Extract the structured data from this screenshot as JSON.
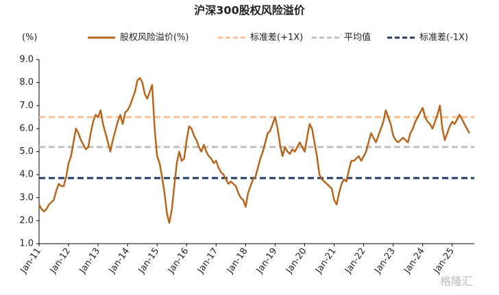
{
  "chart_data": {
    "type": "line",
    "title": "沪深300股权风险溢价",
    "y_label": "(%)",
    "watermark": "格隆汇",
    "categories": [
      "Jan-11",
      null,
      null,
      null,
      null,
      null,
      null,
      null,
      null,
      null,
      null,
      null,
      "Jan-12",
      null,
      null,
      null,
      null,
      null,
      null,
      null,
      null,
      null,
      null,
      null,
      "Jan-13",
      null,
      null,
      null,
      null,
      null,
      null,
      null,
      null,
      null,
      null,
      null,
      "Jan-14",
      null,
      null,
      null,
      null,
      null,
      null,
      null,
      null,
      null,
      null,
      null,
      "Jan-15",
      null,
      null,
      null,
      null,
      null,
      null,
      null,
      null,
      null,
      null,
      null,
      "Jan-16",
      null,
      null,
      null,
      null,
      null,
      null,
      null,
      null,
      null,
      null,
      null,
      "Jan-17",
      null,
      null,
      null,
      null,
      null,
      null,
      null,
      null,
      null,
      null,
      null,
      "Jan-18",
      null,
      null,
      null,
      null,
      null,
      null,
      null,
      null,
      null,
      null,
      null,
      "Jan-19",
      null,
      null,
      null,
      null,
      null,
      null,
      null,
      null,
      null,
      null,
      null,
      "Jan-20",
      null,
      null,
      null,
      null,
      null,
      null,
      null,
      null,
      null,
      null,
      null,
      "Jan-21",
      null,
      null,
      null,
      null,
      null,
      null,
      null,
      null,
      null,
      null,
      null,
      "Jan-22",
      null,
      null,
      null,
      null,
      null,
      null,
      null,
      null,
      null,
      null,
      null,
      "Jan-23",
      null,
      null,
      null,
      null,
      null,
      null,
      null,
      null,
      null,
      null,
      null,
      "Jan-24",
      null,
      null,
      null,
      null,
      null,
      null,
      null,
      null,
      null,
      null,
      null,
      "Jan-25",
      null,
      null,
      null,
      null,
      null,
      null,
      null
    ],
    "series": [
      {
        "name": "股权风险溢价(%)",
        "color": "#b8651b",
        "values": [
          2.7,
          2.5,
          2.4,
          2.5,
          2.7,
          2.8,
          2.9,
          3.3,
          3.6,
          3.5,
          3.5,
          3.9,
          4.5,
          4.8,
          5.4,
          6.0,
          5.8,
          5.5,
          5.3,
          5.1,
          5.2,
          5.8,
          6.3,
          6.6,
          6.5,
          6.8,
          6.2,
          5.8,
          5.4,
          5.0,
          5.5,
          5.9,
          6.3,
          6.6,
          6.2,
          6.7,
          6.8,
          7.0,
          7.3,
          7.6,
          8.1,
          8.2,
          8.0,
          7.5,
          7.3,
          7.6,
          7.9,
          6.0,
          4.8,
          4.5,
          3.9,
          3.2,
          2.3,
          1.9,
          2.5,
          3.5,
          4.5,
          5.0,
          4.6,
          4.7,
          5.5,
          6.1,
          6.0,
          5.7,
          5.5,
          5.2,
          5.0,
          5.3,
          5.0,
          4.8,
          4.7,
          4.5,
          4.6,
          4.3,
          4.1,
          4.0,
          3.8,
          3.6,
          3.7,
          3.6,
          3.5,
          3.2,
          3.0,
          2.9,
          2.6,
          3.2,
          3.5,
          3.8,
          3.9,
          4.3,
          4.7,
          5.0,
          5.4,
          5.8,
          5.9,
          6.2,
          6.5,
          6.0,
          5.3,
          4.8,
          5.2,
          5.0,
          4.9,
          5.1,
          5.0,
          5.2,
          5.4,
          5.2,
          5.0,
          5.6,
          6.2,
          6.0,
          5.4,
          4.8,
          4.0,
          3.8,
          3.7,
          3.6,
          3.5,
          3.4,
          2.9,
          2.7,
          3.2,
          3.6,
          3.8,
          3.7,
          4.2,
          4.6,
          4.6,
          4.7,
          4.8,
          4.6,
          4.8,
          5.0,
          5.4,
          5.8,
          5.6,
          5.4,
          5.7,
          6.0,
          6.3,
          6.8,
          6.5,
          6.2,
          5.7,
          5.5,
          5.4,
          5.5,
          5.6,
          5.5,
          5.4,
          5.8,
          6.0,
          6.3,
          6.5,
          6.7,
          6.9,
          6.5,
          6.3,
          6.2,
          6.0,
          6.3,
          6.6,
          7.0,
          6.0,
          5.5,
          5.8,
          6.1,
          6.3,
          6.2,
          6.4,
          6.6,
          6.4,
          6.2,
          6.0,
          5.8
        ]
      }
    ],
    "hlines": [
      {
        "name": "标准差(+1X)",
        "color": "#f5c198",
        "value": 6.5
      },
      {
        "name": "平均值",
        "color": "#bfbfbf",
        "value": 5.2
      },
      {
        "name": "标准差(-1X)",
        "color": "#1f3864",
        "value": 3.85
      }
    ],
    "ylim": [
      1,
      9
    ],
    "yticks": [
      {
        "value": 1,
        "label": "1.0"
      },
      {
        "value": 2,
        "label": "2.0"
      },
      {
        "value": 3,
        "label": "3.0"
      },
      {
        "value": 4,
        "label": "4.0"
      },
      {
        "value": 5,
        "label": "5.0"
      },
      {
        "value": 6,
        "label": "6.0"
      },
      {
        "value": 7,
        "label": "7.0"
      },
      {
        "value": 8,
        "label": "8.0"
      },
      {
        "value": 9,
        "label": "9.0"
      }
    ],
    "grid": false
  }
}
